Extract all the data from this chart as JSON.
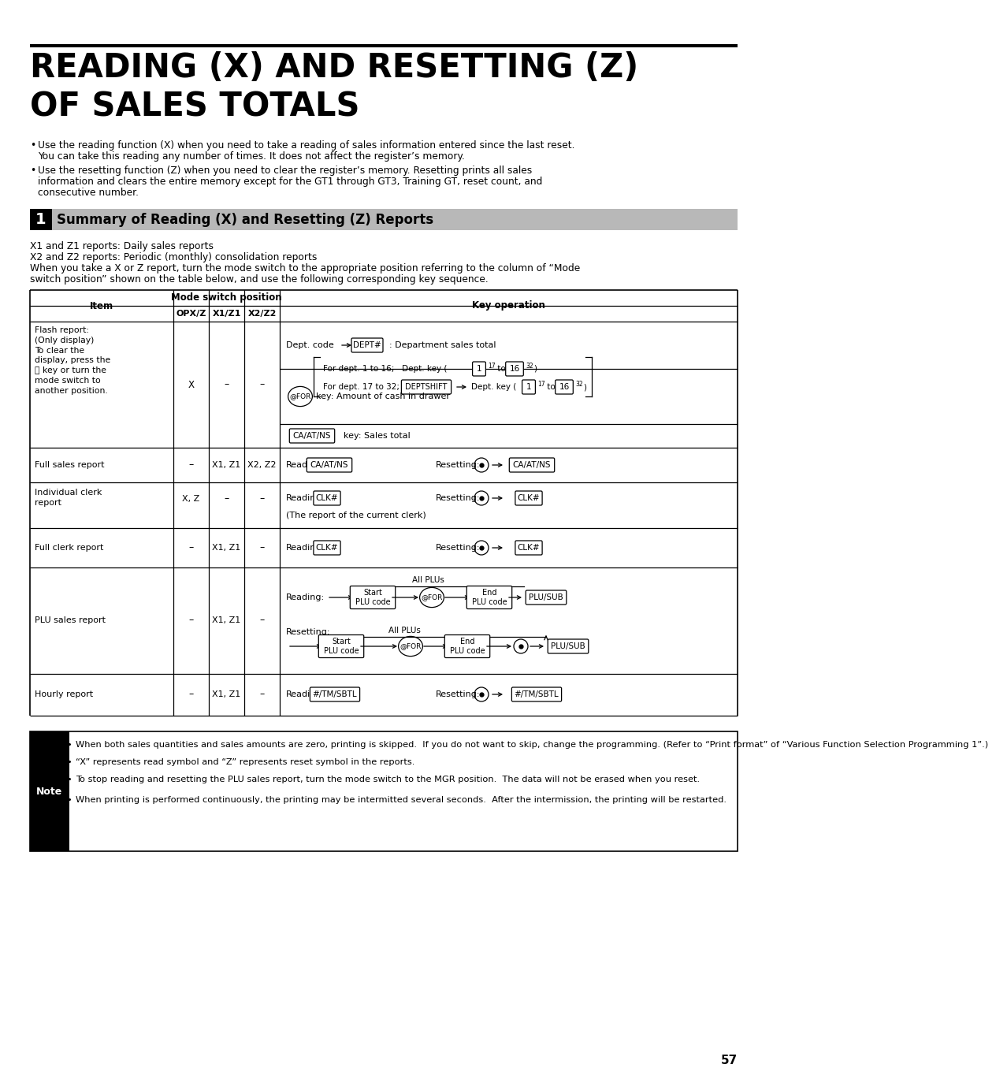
{
  "title_line1": "READING (X) AND RESETTING (Z)",
  "title_line2": "OF SALES TOTALS",
  "section_num": "1",
  "section_title": "Summary of Reading (X) and Resetting (Z) Reports",
  "bg_color": "#ffffff",
  "text_color": "#000000",
  "page_number": "57",
  "note_text": [
    "When both sales quantities and sales amounts are zero, printing is skipped.  If you do not want to skip, change the programming. (Refer to “Print format” of “Various Function Selection Programming 1”.)",
    "“X” represents read symbol and “Z” represents reset symbol in the reports.",
    "To stop reading and resetting the PLU sales report, turn the mode switch to the MGR position.  The data will not be erased when you reset.",
    "When printing is performed continuously, the printing may be intermitted several seconds.  After the intermission, the printing will be restarted."
  ]
}
